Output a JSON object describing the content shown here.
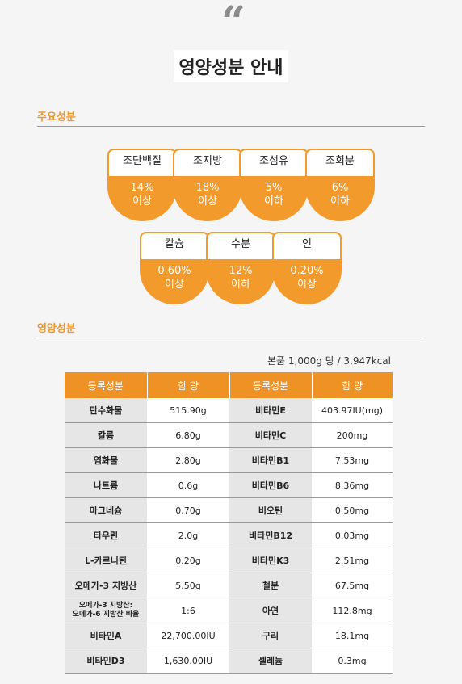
{
  "quote_mark": "“",
  "title": "영양성분 안내",
  "sections": {
    "main": "주요성분",
    "nutrition": "영양성분"
  },
  "badges": [
    {
      "name": "조단백질",
      "value": "14%",
      "qualifier": "이상"
    },
    {
      "name": "조지방",
      "value": "18%",
      "qualifier": "이상"
    },
    {
      "name": "조섬유",
      "value": "5%",
      "qualifier": "이하"
    },
    {
      "name": "조회분",
      "value": "6%",
      "qualifier": "이하"
    },
    {
      "name": "칼슘",
      "value": "0.60%",
      "qualifier": "이상"
    },
    {
      "name": "수분",
      "value": "12%",
      "qualifier": "이하"
    },
    {
      "name": "인",
      "value": "0.20%",
      "qualifier": "이상"
    }
  ],
  "serving": "본품 1,000g 당 / 3,947kcal",
  "table": {
    "headers": [
      "등록성분",
      "함 량",
      "등록성분",
      "함 량"
    ],
    "rows": [
      [
        "탄수화물",
        "515.90g",
        "비타민E",
        "403.97IU(mg)"
      ],
      [
        "칼륨",
        "6.80g",
        "비타민C",
        "200mg"
      ],
      [
        "염화물",
        "2.80g",
        "비타민B1",
        "7.53mg"
      ],
      [
        "나트륨",
        "0.6g",
        "비타민B6",
        "8.36mg"
      ],
      [
        "마그네슘",
        "0.70g",
        "비오틴",
        "0.50mg"
      ],
      [
        "타우린",
        "2.0g",
        "비타민B12",
        "0.03mg"
      ],
      [
        "L-카르니틴",
        "0.20g",
        "비타민K3",
        "2.51mg"
      ],
      [
        "오메가-3 지방산",
        "5.50g",
        "철분",
        "67.5mg"
      ],
      [
        "오메가-3 지방산:\n오메가-6 지방산 비율",
        "1:6",
        "아연",
        "112.8mg"
      ],
      [
        "비타민A",
        "22,700.00IU",
        "구리",
        "18.1mg"
      ],
      [
        "비타민D3",
        "1,630.00IU",
        "셀레늄",
        "0.3mg"
      ]
    ]
  },
  "colors": {
    "accent": "#f39a2c",
    "header_bg": "#ef9226",
    "name_cell_bg": "#e6e6e6",
    "page_bg": "#f5f5f5"
  }
}
